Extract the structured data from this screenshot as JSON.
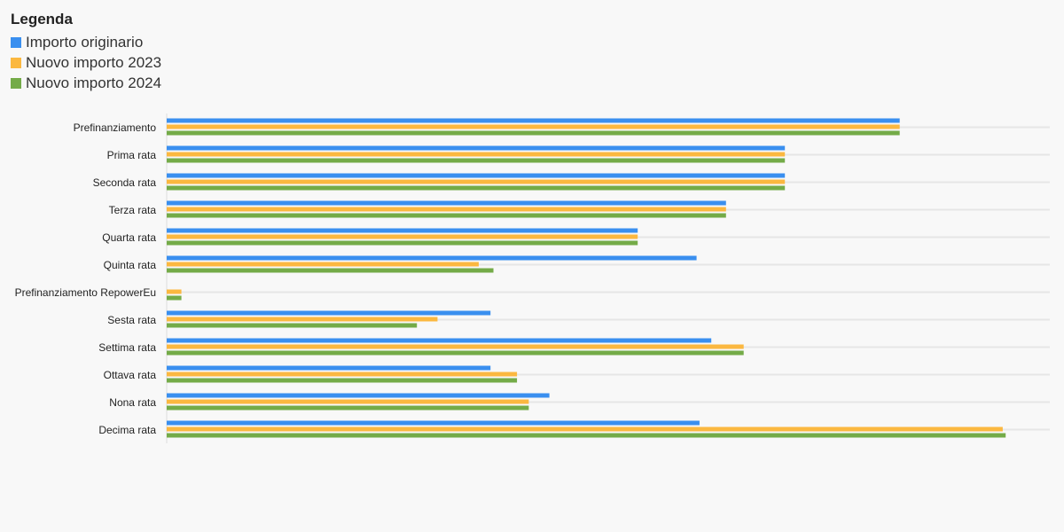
{
  "legend": {
    "title": "Legenda"
  },
  "chart_data": {
    "type": "bar",
    "orientation": "horizontal",
    "categories": [
      "Prefinanziamento",
      "Prima rata",
      "Seconda rata",
      "Terza rata",
      "Quarta rata",
      "Quinta rata",
      "Prefinanziamento RepowerEu",
      "Sesta rata",
      "Settima rata",
      "Ottava rata",
      "Nona rata",
      "Decima rata"
    ],
    "series": [
      {
        "name": "Importo originario",
        "color": "#3a8fef",
        "values": [
          24.9,
          21.0,
          21.0,
          19.0,
          16.0,
          18.0,
          0,
          11.0,
          18.5,
          11.0,
          13.0,
          18.1
        ]
      },
      {
        "name": "Nuovo importo 2023",
        "color": "#fbb840",
        "values": [
          24.9,
          21.0,
          21.0,
          19.0,
          16.0,
          10.6,
          0.5,
          9.2,
          19.6,
          11.9,
          12.3,
          28.4
        ]
      },
      {
        "name": "Nuovo importo 2024",
        "color": "#74ab48",
        "values": [
          24.9,
          21.0,
          21.0,
          19.0,
          16.0,
          11.1,
          0.5,
          8.5,
          19.6,
          11.9,
          12.3,
          28.5
        ]
      }
    ],
    "xlim": [
      0,
      30
    ],
    "grid": true,
    "legend_position": "top-left",
    "title": "",
    "xlabel": "",
    "ylabel": ""
  }
}
